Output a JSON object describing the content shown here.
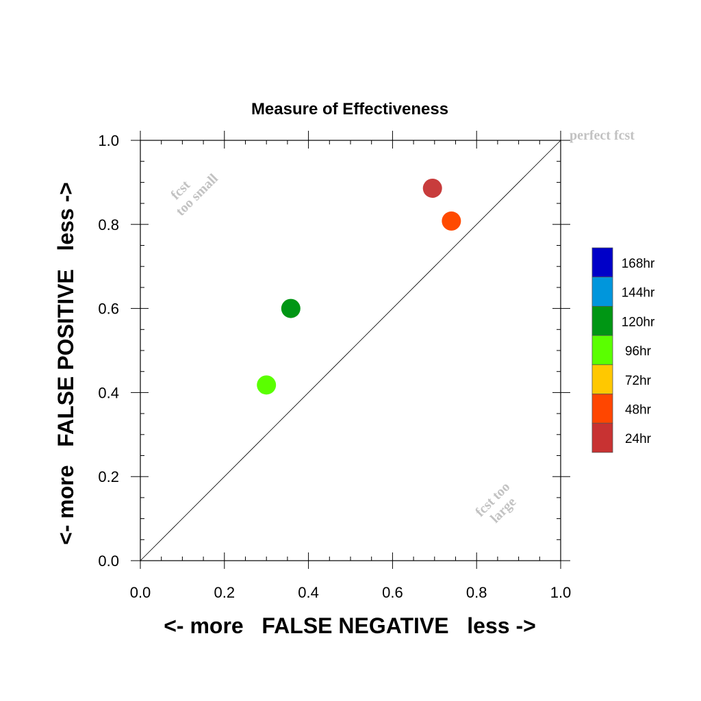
{
  "chart_data": {
    "type": "scatter",
    "title": "Measure of Effectiveness",
    "xlabel": "<- more   FALSE NEGATIVE   less ->",
    "ylabel": "<- more   FALSE POSITIVE   less ->",
    "xlim": [
      0.0,
      1.0
    ],
    "ylim": [
      0.0,
      1.0
    ],
    "x_ticks": [
      "0.0",
      "0.2",
      "0.4",
      "0.6",
      "0.8",
      "1.0"
    ],
    "y_ticks": [
      "0.0",
      "0.2",
      "0.4",
      "0.6",
      "0.8",
      "1.0"
    ],
    "grid": false,
    "diagonal_reference_line": true,
    "legend_position": "right",
    "legend": [
      {
        "label": "168hr",
        "color": "#0000c8"
      },
      {
        "label": "144hr",
        "color": "#0096dc"
      },
      {
        "label": "120hr",
        "color": "#009614"
      },
      {
        "label": "96hr",
        "color": "#5aff00"
      },
      {
        "label": "72hr",
        "color": "#ffc800"
      },
      {
        "label": "48hr",
        "color": "#ff4600"
      },
      {
        "label": "24hr",
        "color": "#c83232"
      }
    ],
    "points": [
      {
        "label": "24hr",
        "x": 0.695,
        "y": 0.886,
        "color": "#c83c3c"
      },
      {
        "label": "48hr",
        "x": 0.74,
        "y": 0.808,
        "color": "#ff4a00"
      },
      {
        "label": "120hr",
        "x": 0.358,
        "y": 0.6,
        "color": "#009614"
      },
      {
        "label": "96hr",
        "x": 0.3,
        "y": 0.418,
        "color": "#5aff00"
      }
    ],
    "annotations": {
      "top_right": "perfect fcst",
      "upper_left_line1": "fcst",
      "upper_left_line2": "too small",
      "lower_right_line1": "fcst too",
      "lower_right_line2": "large"
    }
  }
}
